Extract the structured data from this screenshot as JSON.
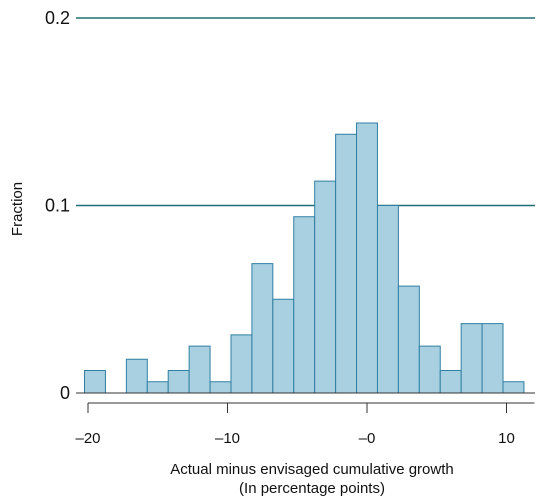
{
  "chart_data": {
    "type": "bar",
    "xlabel": "Actual minus envisaged cumulative growth",
    "xlabel_sub": "(In percentage points)",
    "ylabel": "Fraction",
    "xlim": [
      -21,
      12.5
    ],
    "ylim": [
      0,
      0.2
    ],
    "xticks": [
      {
        "value": -20,
        "label": "–20"
      },
      {
        "value": -10,
        "label": "–10"
      },
      {
        "value": 0,
        "label": "–0"
      },
      {
        "value": 10,
        "label": "10"
      }
    ],
    "yticks": [
      {
        "value": 0,
        "label": "0"
      },
      {
        "value": 0.1,
        "label": "0.1"
      },
      {
        "value": 0.2,
        "label": "0.2"
      }
    ],
    "grid": {
      "horizontal": true,
      "vertical": false
    },
    "bin_width": 1.5,
    "bins": [
      {
        "x0": -20.25,
        "value": 0.012
      },
      {
        "x0": -18.75,
        "value": 0.0
      },
      {
        "x0": -17.25,
        "value": 0.018
      },
      {
        "x0": -15.75,
        "value": 0.006
      },
      {
        "x0": -14.25,
        "value": 0.012
      },
      {
        "x0": -12.75,
        "value": 0.025
      },
      {
        "x0": -11.25,
        "value": 0.006
      },
      {
        "x0": -9.75,
        "value": 0.031
      },
      {
        "x0": -8.25,
        "value": 0.069
      },
      {
        "x0": -6.75,
        "value": 0.05
      },
      {
        "x0": -5.25,
        "value": 0.094
      },
      {
        "x0": -3.75,
        "value": 0.113
      },
      {
        "x0": -2.25,
        "value": 0.138
      },
      {
        "x0": -0.75,
        "value": 0.144
      },
      {
        "x0": 0.75,
        "value": 0.1
      },
      {
        "x0": 2.25,
        "value": 0.057
      },
      {
        "x0": 3.75,
        "value": 0.025
      },
      {
        "x0": 5.25,
        "value": 0.012
      },
      {
        "x0": 6.75,
        "value": 0.037
      },
      {
        "x0": 8.25,
        "value": 0.037
      },
      {
        "x0": 9.75,
        "value": 0.006
      }
    ],
    "colors": {
      "bar_fill": "#a9d0e1",
      "bar_stroke": "#2f7fa3",
      "grid": "#1f6e74",
      "axis": "#333333",
      "text": "#111111"
    }
  }
}
